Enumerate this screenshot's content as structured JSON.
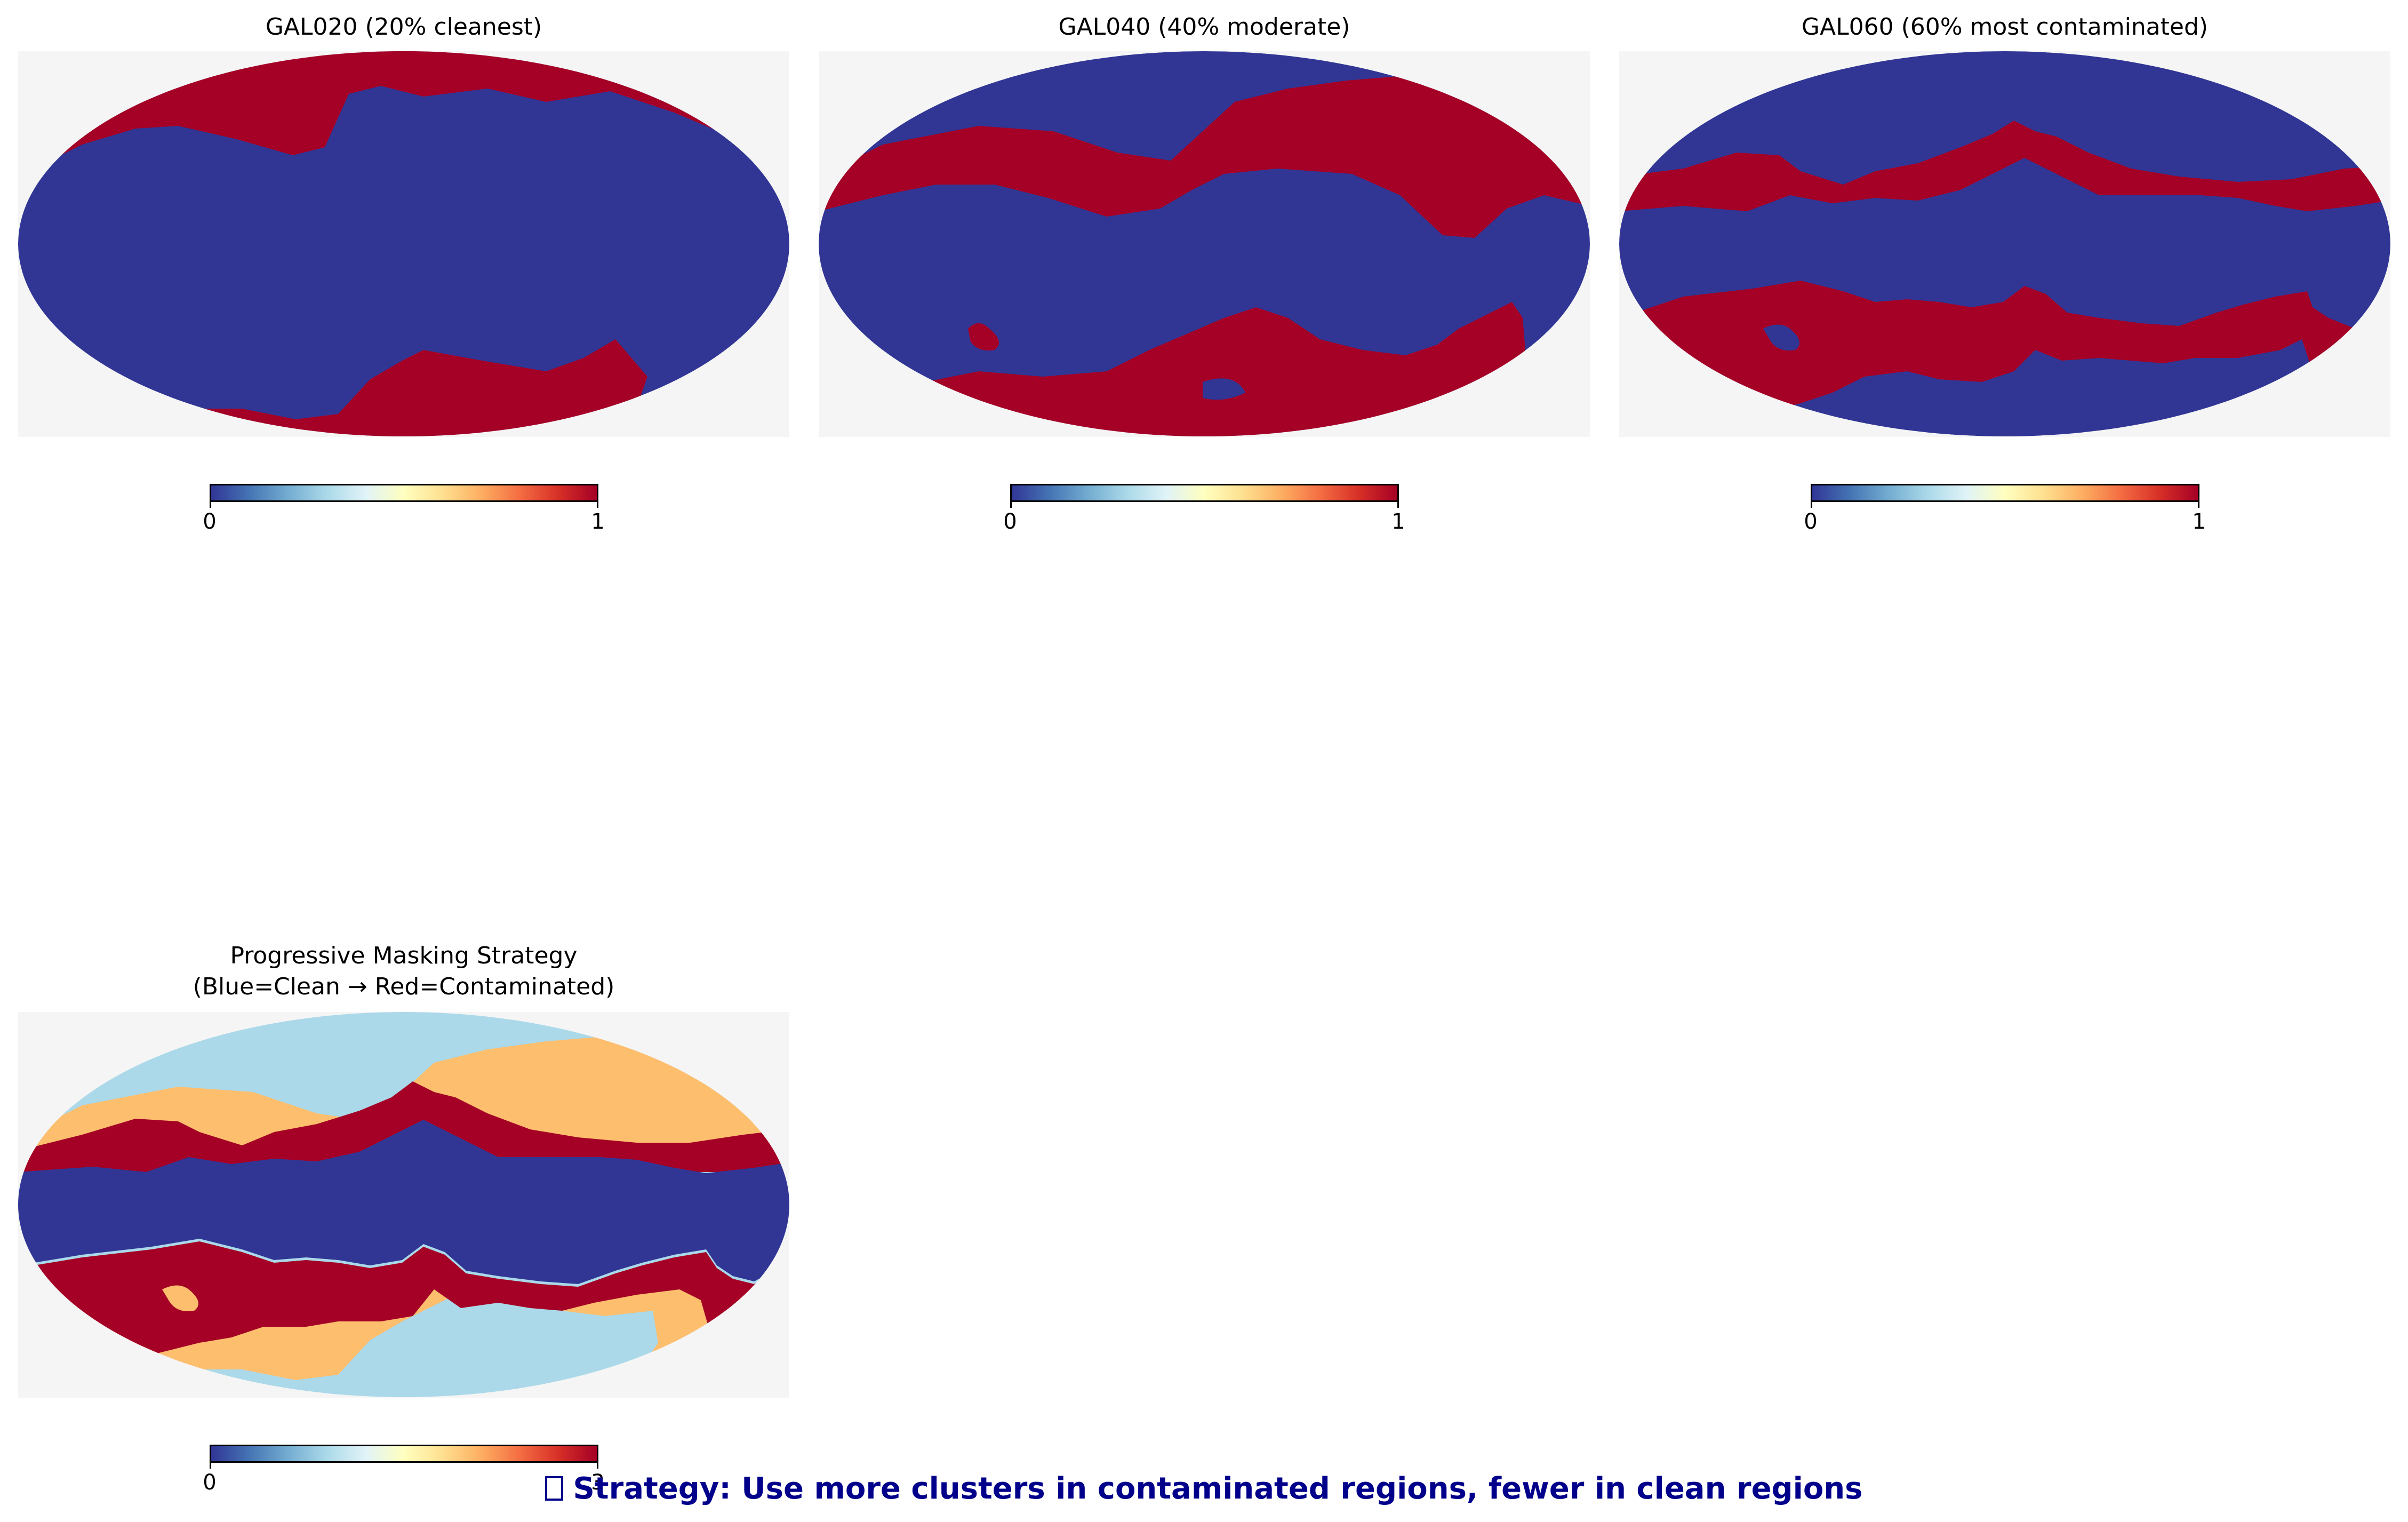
{
  "panels": [
    {
      "title": "GAL020 (20% cleanest)",
      "colorbar": {
        "min_label": "0",
        "max_label": "1"
      }
    },
    {
      "title": "GAL040 (40% moderate)",
      "colorbar": {
        "min_label": "0",
        "max_label": "1"
      }
    },
    {
      "title": "GAL060 (60% most contaminated)",
      "colorbar": {
        "min_label": "0",
        "max_label": "1"
      }
    },
    {
      "title": "Progressive Masking Strategy\n(Blue=Clean → Red=Contaminated)",
      "colorbar": {
        "min_label": "0",
        "max_label": "3"
      }
    }
  ],
  "footer": {
    "text": "Strategy: Use more clusters in contaminated regions, fewer in clean regions",
    "icon": "box-glyph-icon"
  },
  "chart_data": [
    {
      "type": "heatmap",
      "projection": "mollweide",
      "title": "GAL020 (20% cleanest)",
      "colormap": "RdYlBu_r",
      "value_range": [
        0,
        1
      ],
      "values_present": [
        0,
        1
      ],
      "colorbar_ticks": [
        "0",
        "1"
      ],
      "colors": {
        "0": "#313695",
        "1": "#a50026",
        "background": "#f5f5f5"
      }
    },
    {
      "type": "heatmap",
      "projection": "mollweide",
      "title": "GAL040 (40% moderate)",
      "colormap": "RdYlBu_r",
      "value_range": [
        0,
        1
      ],
      "values_present": [
        0,
        1
      ],
      "colorbar_ticks": [
        "0",
        "1"
      ],
      "colors": {
        "0": "#313695",
        "1": "#a50026",
        "background": "#f5f5f5"
      }
    },
    {
      "type": "heatmap",
      "projection": "mollweide",
      "title": "GAL060 (60% most contaminated)",
      "colormap": "RdYlBu_r",
      "value_range": [
        0,
        1
      ],
      "values_present": [
        0,
        1
      ],
      "colorbar_ticks": [
        "0",
        "1"
      ],
      "colors": {
        "0": "#313695",
        "1": "#a50026",
        "background": "#f5f5f5"
      }
    },
    {
      "type": "heatmap",
      "projection": "mollweide",
      "title": "Progressive Masking Strategy\n(Blue=Clean → Red=Contaminated)",
      "colormap": "RdYlBu_r",
      "value_range": [
        0,
        3
      ],
      "values_present": [
        0,
        1,
        2,
        3
      ],
      "colorbar_ticks": [
        "0",
        "3"
      ],
      "colors": {
        "0": "#313695",
        "1": "#abd9e9",
        "2": "#fdbe6e",
        "3": "#a50026",
        "background": "#f5f5f5"
      }
    }
  ]
}
